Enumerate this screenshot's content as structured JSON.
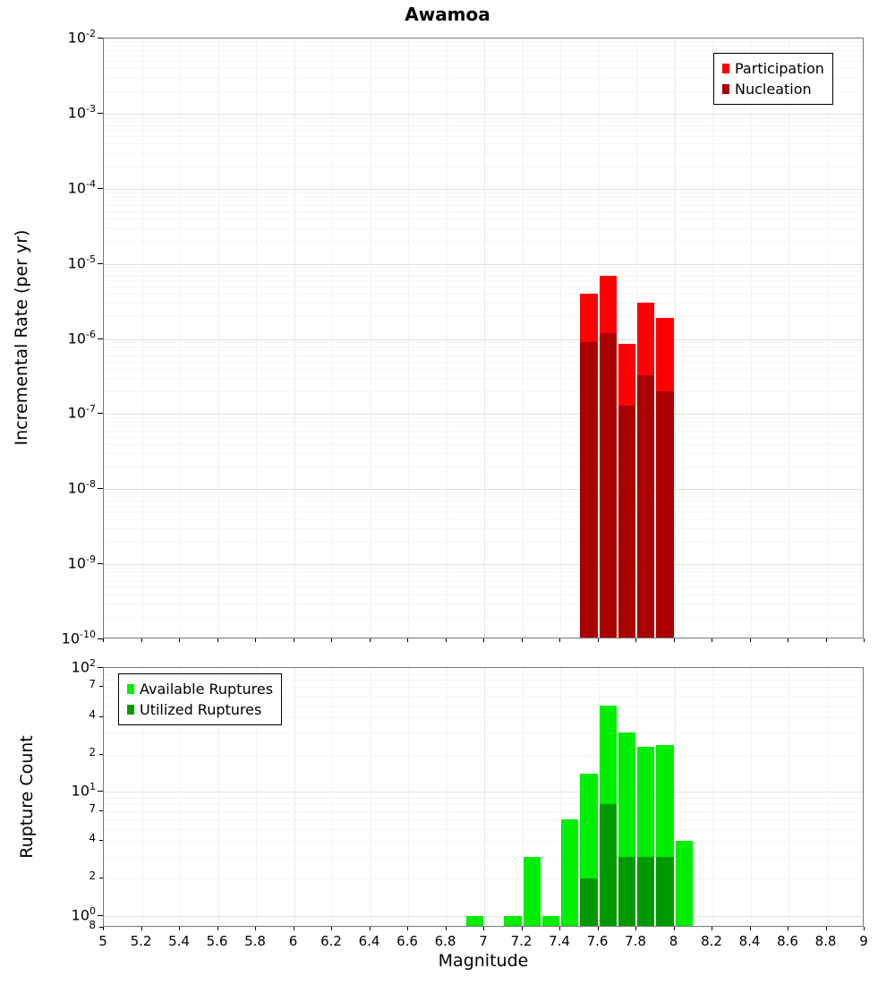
{
  "title": "Awamoa",
  "axes": {
    "x_label": "Magnitude",
    "top_y_label": "Incremental Rate (per yr)",
    "bottom_y_label": "Rupture Count"
  },
  "x_axis": {
    "min": 5,
    "max": 9,
    "tick_step": 0.2,
    "tick_labels": [
      "5",
      "5.2",
      "5.4",
      "5.6",
      "5.8",
      "6",
      "6.2",
      "6.4",
      "6.6",
      "6.8",
      "7",
      "7.2",
      "7.4",
      "7.6",
      "7.8",
      "8",
      "8.2",
      "8.4",
      "8.6",
      "8.8",
      "9"
    ]
  },
  "top_legend": {
    "items": [
      {
        "label": "Participation",
        "color": "#ff0000"
      },
      {
        "label": "Nucleation",
        "color": "#aa0000"
      }
    ]
  },
  "bottom_legend": {
    "items": [
      {
        "label": "Available Ruptures",
        "color": "#00ee00"
      },
      {
        "label": "Utilized Ruptures",
        "color": "#009a00"
      }
    ]
  },
  "chart_data": [
    {
      "panel": "top",
      "type": "bar",
      "title": "Awamoa",
      "xlabel": "Magnitude",
      "ylabel": "Incremental Rate (per yr)",
      "y_scale": "log",
      "xlim": [
        5,
        9
      ],
      "ylim": [
        1e-10,
        0.01
      ],
      "grid": true,
      "legend_position": "top-right",
      "bin_width": 0.1,
      "bin_centers": [
        7.55,
        7.65,
        7.75,
        7.85,
        7.95
      ],
      "series": [
        {
          "name": "Participation",
          "color": "#ff0000",
          "values": [
            4e-06,
            7e-06,
            8.5e-07,
            3e-06,
            1.9e-06
          ]
        },
        {
          "name": "Nucleation",
          "color": "#aa0000",
          "values": [
            9e-07,
            1.2e-06,
            1.3e-07,
            3.3e-07,
            2e-07
          ]
        }
      ],
      "y_ticks": [
        {
          "v": 0.01,
          "label": "10^-2",
          "major": true
        },
        {
          "v": 0.001,
          "label": "10^-3",
          "major": true
        },
        {
          "v": 0.0001,
          "label": "10^-4",
          "major": true
        },
        {
          "v": 1e-05,
          "label": "10^-5",
          "major": true
        },
        {
          "v": 1e-06,
          "label": "10^-6",
          "major": true
        },
        {
          "v": 1e-07,
          "label": "10^-7",
          "major": true
        },
        {
          "v": 1e-08,
          "label": "10^-8",
          "major": true
        },
        {
          "v": 1e-09,
          "label": "10^-9",
          "major": true
        },
        {
          "v": 1e-10,
          "label": "10^-10",
          "major": true
        }
      ]
    },
    {
      "panel": "bottom",
      "type": "bar",
      "title": "",
      "xlabel": "Magnitude",
      "ylabel": "Rupture Count",
      "y_scale": "log",
      "xlim": [
        5,
        9
      ],
      "ylim": [
        0.8,
        100
      ],
      "grid": true,
      "legend_position": "top-left",
      "bin_width": 0.1,
      "bin_centers": [
        6.95,
        7.15,
        7.25,
        7.35,
        7.45,
        7.55,
        7.65,
        7.75,
        7.85,
        7.95,
        8.05
      ],
      "series": [
        {
          "name": "Available Ruptures",
          "color": "#00ee00",
          "values": [
            1,
            1,
            3,
            1,
            6,
            14,
            50,
            30,
            23,
            24,
            4
          ]
        },
        {
          "name": "Utilized Ruptures",
          "color": "#009a00",
          "values": [
            0,
            0,
            0,
            0,
            0,
            2,
            8,
            3,
            3,
            3,
            0
          ]
        }
      ],
      "y_ticks": [
        {
          "v": 100,
          "label": "10^2",
          "major": true
        },
        {
          "v": 70,
          "label": "7",
          "major": false
        },
        {
          "v": 40,
          "label": "4",
          "major": false
        },
        {
          "v": 20,
          "label": "2",
          "major": false
        },
        {
          "v": 10,
          "label": "10^1",
          "major": true
        },
        {
          "v": 7,
          "label": "7",
          "major": false
        },
        {
          "v": 4,
          "label": "4",
          "major": false
        },
        {
          "v": 2,
          "label": "2",
          "major": false
        },
        {
          "v": 1,
          "label": "10^0",
          "major": true
        },
        {
          "v": 0.8,
          "label": "8",
          "major": false
        }
      ]
    }
  ]
}
